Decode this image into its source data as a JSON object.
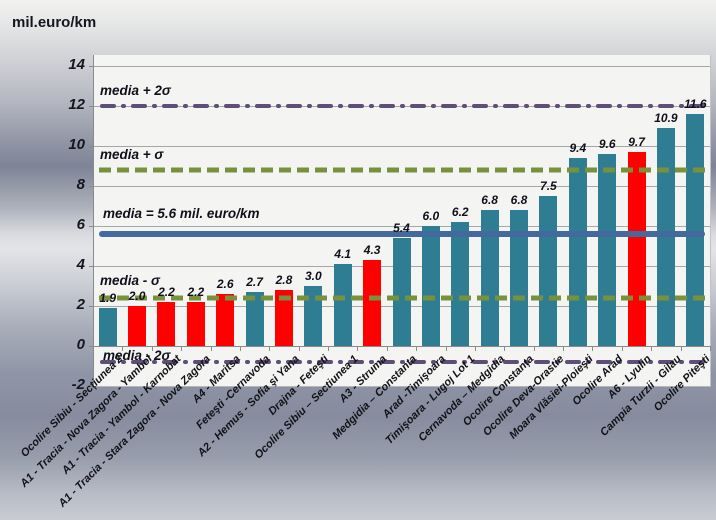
{
  "chart_data": {
    "type": "bar",
    "title": "mil.euro/km",
    "ylabel": "mil.euro/km",
    "ylim": [
      -2,
      14
    ],
    "y_ticks": [
      14,
      12,
      10,
      8,
      6,
      4,
      2,
      0,
      -2
    ],
    "grid": true,
    "legend": "none",
    "categories": [
      "Ocolire Sibiu - Secțiunea 2",
      "A1 - Tracia - Nova Zagora - Yambol",
      "A1 - Tracia - Yambol - Karnobat",
      "A1 - Tracia - Stara Zagora - Nova Zagora",
      "A4 - Maritsa",
      "Feteşti -Cernavoda",
      "A2 - Hemus - Sofia şi Yana",
      "Drajna - Feteşti",
      "Ocolire Sibiu – Sectiunea 1",
      "A3 - Struma",
      "Medgidia – Constanta",
      "Arad -Timişoara",
      "Timişoara - Lugoj Lot 1",
      "Cernavoda – Medgidia",
      "Ocolire Constanța",
      "Ocolire Deva-Orastie",
      "Moara Vlăsiei-Ploieşti",
      "Ocolire Arad",
      "A6 - Lyulin",
      "Campia Turzii - Gilau",
      "Ocolire Piteşti"
    ],
    "values": [
      1.9,
      2.0,
      2.2,
      2.2,
      2.6,
      2.7,
      2.8,
      3.0,
      4.1,
      4.3,
      5.4,
      6.0,
      6.2,
      6.8,
      6.8,
      7.5,
      9.4,
      9.6,
      9.7,
      10.9,
      11.6
    ],
    "value_labels": [
      "1.9",
      "2.0",
      "2.2",
      "2.2",
      "2.6",
      "2.7",
      "2.8",
      "3.0",
      "4.1",
      "4.3",
      "5.4",
      "6.0",
      "6.2",
      "6.8",
      "6.8",
      "7.5",
      "9.4",
      "9.6",
      "9.7",
      "10.9",
      "11.6"
    ],
    "bar_color_keys": [
      "teal",
      "red",
      "red",
      "red",
      "red",
      "teal",
      "red",
      "teal",
      "teal",
      "red",
      "teal",
      "teal",
      "teal",
      "teal",
      "teal",
      "teal",
      "teal",
      "teal",
      "red",
      "teal",
      "teal"
    ],
    "mean": 5.6,
    "sigma": 3.2,
    "reference_lines": [
      {
        "label": "media + 2σ",
        "value": 12,
        "style": "dashdot",
        "color": "#5F4F78"
      },
      {
        "label": "media + σ",
        "value": 8.8,
        "style": "dashed",
        "color": "#77913C"
      },
      {
        "label": "media = 5.6 mil. euro/km",
        "value": 5.6,
        "style": "solid",
        "color": "#44699C"
      },
      {
        "label": "media - σ",
        "value": 2.4,
        "style": "dashed",
        "color": "#77913C"
      },
      {
        "label": "media - 2σ",
        "value": -0.8,
        "style": "dashdot",
        "color": "#5F4F78"
      }
    ]
  },
  "colors": {
    "bar_teal": "#2F7D92",
    "bar_red": "#FE0000",
    "line_purple": "#5F4F78",
    "line_olive": "#77913C",
    "line_blue": "#44699C",
    "gridline": "#A6A6A6",
    "axis": "#8A8A8A",
    "plot_background": "#F4F4F2",
    "text": "#15151F"
  }
}
